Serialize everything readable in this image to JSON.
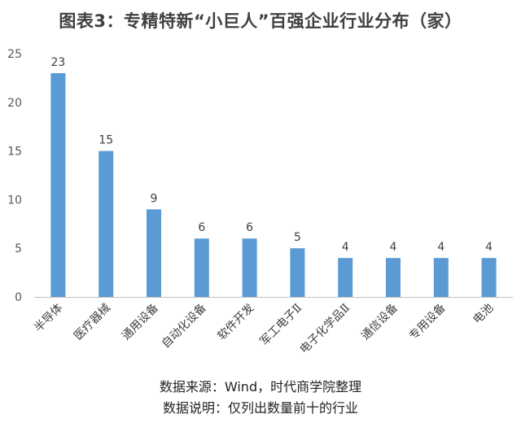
{
  "chart_data": {
    "type": "bar",
    "title": "图表3：专精特新“小巨人”百强企业行业分布（家）",
    "categories": [
      "半导体",
      "医疗器械",
      "通用设备",
      "自动化设备",
      "软件开发",
      "军工电子Ⅱ",
      "电子化学品Ⅱ",
      "通信设备",
      "专用设备",
      "电池"
    ],
    "values": [
      23,
      15,
      9,
      6,
      6,
      5,
      4,
      4,
      4,
      4
    ],
    "ylim": [
      0,
      25
    ],
    "yticks": [
      0,
      5,
      10,
      15,
      20,
      25
    ],
    "xlabel": "",
    "ylabel": "",
    "grid": false,
    "legend": "none",
    "bar_color": "#5B9BD5",
    "axis_color": "#BFBFBF"
  },
  "notes": {
    "source": "数据来源：Wind，时代商学院整理",
    "explain": "数据说明：仅列出数量前十的行业"
  }
}
